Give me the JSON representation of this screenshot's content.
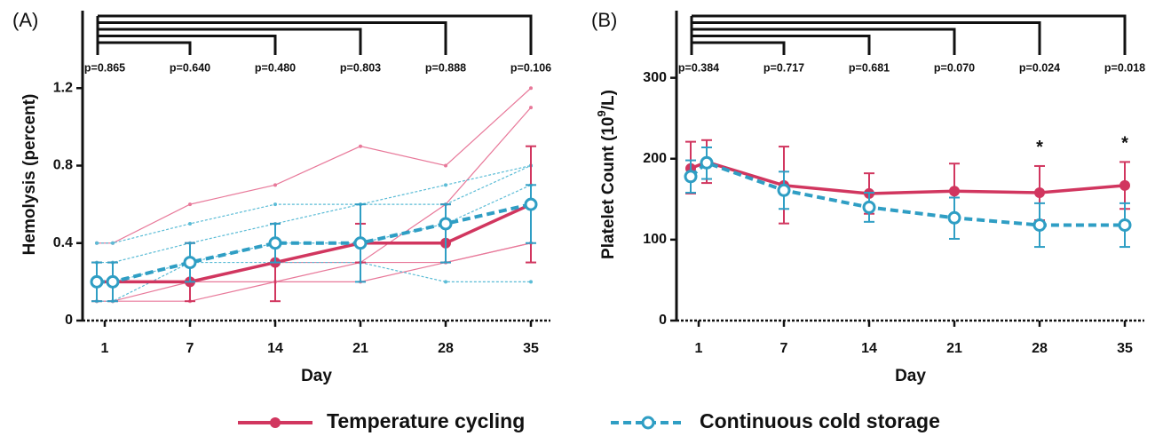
{
  "charts": [
    {
      "type": "line",
      "panel_label": "(A)",
      "y_label": "Hemolysis (percent)",
      "x_label": "Day",
      "categories": [
        null,
        "1",
        "7",
        "14",
        "21",
        "28",
        "35"
      ],
      "ylim": [
        0,
        1.6
      ],
      "yticks": [
        0,
        0.4,
        0.8,
        1.2
      ],
      "series": [
        {
          "color": "#d1365f",
          "dash": false,
          "values": [
            0.2,
            0.2,
            0.2,
            0.3,
            0.4,
            0.4,
            0.6
          ],
          "low": [
            0.1,
            0.1,
            0.1,
            0.1,
            0.3,
            0.3,
            0.3
          ],
          "high": [
            0.3,
            0.3,
            0.4,
            0.5,
            0.5,
            0.6,
            0.9
          ]
        },
        {
          "color": "#2f9ec4",
          "dash": true,
          "values": [
            0.2,
            0.2,
            0.3,
            0.4,
            0.4,
            0.5,
            0.6
          ],
          "low": [
            0.1,
            0.1,
            0.2,
            0.3,
            0.2,
            0.3,
            0.4
          ],
          "high": [
            0.3,
            0.3,
            0.4,
            0.5,
            0.6,
            0.6,
            0.7
          ]
        }
      ],
      "individuals": [
        {
          "color": "#e8799a",
          "dash": false,
          "values": [
            0.4,
            0.4,
            0.6,
            0.7,
            0.9,
            0.8,
            1.2
          ]
        },
        {
          "color": "#e8799a",
          "dash": false,
          "values": [
            0.1,
            0.1,
            0.1,
            0.2,
            0.3,
            0.6,
            1.1
          ]
        },
        {
          "color": "#e8799a",
          "dash": false,
          "values": [
            0.2,
            0.2,
            0.2,
            0.3,
            0.3,
            0.3,
            0.4
          ]
        },
        {
          "color": "#e8799a",
          "dash": false,
          "values": [
            0.1,
            0.1,
            0.2,
            0.2,
            0.2,
            0.3,
            0.4
          ]
        },
        {
          "color": "#5bbcd6",
          "dash": true,
          "values": [
            0.4,
            0.4,
            0.5,
            0.6,
            0.6,
            0.7,
            0.8
          ]
        },
        {
          "color": "#5bbcd6",
          "dash": true,
          "values": [
            0.3,
            0.3,
            0.4,
            0.5,
            0.6,
            0.6,
            0.8
          ]
        },
        {
          "color": "#5bbcd6",
          "dash": true,
          "values": [
            0.2,
            0.2,
            0.3,
            0.3,
            0.3,
            0.2,
            0.2
          ]
        },
        {
          "color": "#5bbcd6",
          "dash": true,
          "values": [
            0.1,
            0.1,
            0.3,
            0.4,
            0.4,
            0.5,
            0.7
          ]
        }
      ],
      "p_labels": [
        "p=0.865",
        "p=0.640",
        "p=0.480",
        "p=0.803",
        "p=0.888",
        "p=0.106"
      ],
      "stars": [
        null,
        null,
        null,
        null,
        null,
        null,
        null
      ]
    },
    {
      "type": "line",
      "panel_label": "(B)",
      "y_label": [
        "Platelet Count (10",
        "9",
        "/L)"
      ],
      "x_label": "Day",
      "categories": [
        null,
        "1",
        "7",
        "14",
        "21",
        "28",
        "35"
      ],
      "ylim": [
        0,
        383
      ],
      "yticks": [
        0,
        100,
        200,
        300
      ],
      "series": [
        {
          "color": "#d1365f",
          "dash": false,
          "values": [
            188,
            196,
            167,
            157,
            160,
            158,
            167
          ],
          "low": [
            157,
            170,
            120,
            132,
            127,
            124,
            138
          ],
          "high": [
            221,
            223,
            215,
            182,
            194,
            191,
            196
          ]
        },
        {
          "color": "#2f9ec4",
          "dash": true,
          "values": [
            178,
            195,
            161,
            140,
            127,
            118,
            118
          ],
          "low": [
            158,
            175,
            138,
            122,
            101,
            91,
            91
          ],
          "high": [
            198,
            214,
            184,
            158,
            152,
            145,
            145
          ]
        }
      ],
      "individuals": [],
      "p_labels": [
        "p=0.384",
        "p=0.717",
        "p=0.681",
        "p=0.070",
        "p=0.024",
        "p=0.018"
      ],
      "stars": [
        null,
        null,
        null,
        null,
        null,
        "*",
        "*"
      ]
    }
  ],
  "legend": [
    {
      "name": "Temperature cycling",
      "color": "#d1365f",
      "dash": false
    },
    {
      "name": "Continuous cold storage",
      "color": "#2f9ec4",
      "dash": true
    }
  ]
}
